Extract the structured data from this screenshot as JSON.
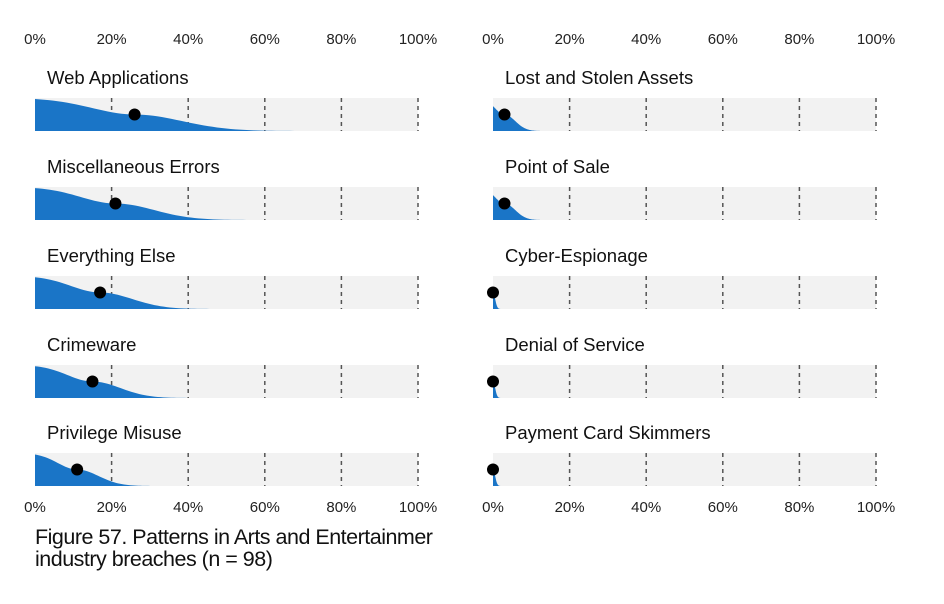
{
  "caption": {
    "line1": "Figure 57. Patterns in Arts and Entertainmer",
    "line2": "industry breaches (n = 98)"
  },
  "chart_data": {
    "type": "area",
    "x_ticks": [
      "0%",
      "20%",
      "40%",
      "60%",
      "80%",
      "100%"
    ],
    "xlim": [
      0,
      100
    ],
    "grid": true,
    "colors": {
      "fill": "#1a75c7",
      "track": "#f2f2f2",
      "point": "#000000",
      "grid": "#555555"
    },
    "panels": [
      {
        "name": "Web Applications",
        "column": "left",
        "value": 26,
        "spread": 22
      },
      {
        "name": "Miscellaneous Errors",
        "column": "left",
        "value": 21,
        "spread": 18
      },
      {
        "name": "Everything Else",
        "column": "left",
        "value": 17,
        "spread": 15
      },
      {
        "name": "Crimeware",
        "column": "left",
        "value": 15,
        "spread": 13
      },
      {
        "name": "Privilege Misuse",
        "column": "left",
        "value": 11,
        "spread": 10
      },
      {
        "name": "Lost and Stolen Assets",
        "column": "right",
        "value": 3,
        "spread": 5
      },
      {
        "name": "Point of Sale",
        "column": "right",
        "value": 3,
        "spread": 5
      },
      {
        "name": "Cyber-Espionage",
        "column": "right",
        "value": 0,
        "spread": 1
      },
      {
        "name": "Denial of Service",
        "column": "right",
        "value": 0,
        "spread": 1
      },
      {
        "name": "Payment Card Skimmers",
        "column": "right",
        "value": 0,
        "spread": 1
      }
    ]
  }
}
